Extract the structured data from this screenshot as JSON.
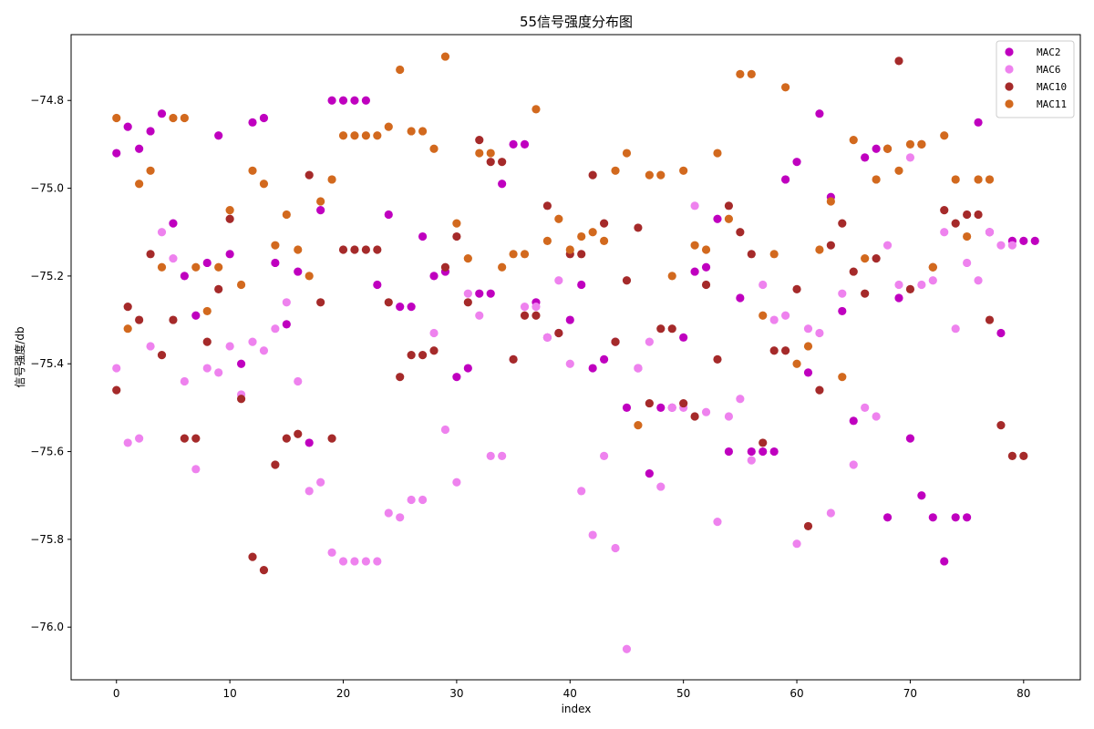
{
  "chart_data": {
    "type": "scatter",
    "title": "55信号强度分布图",
    "xlabel": "index",
    "ylabel": "信号强度/db",
    "xlim": [
      -4,
      85
    ],
    "ylim": [
      -76.12,
      -74.65
    ],
    "xticks": [
      0,
      10,
      20,
      30,
      40,
      50,
      60,
      70,
      80
    ],
    "yticks": [
      -76.0,
      -75.8,
      -75.6,
      -75.4,
      -75.2,
      -75.0,
      -74.8
    ],
    "ytick_labels": [
      "−76.0",
      "−75.8",
      "−75.6",
      "−75.4",
      "−75.2",
      "−75.0",
      "−74.8"
    ],
    "xtick_labels": [
      "0",
      "10",
      "20",
      "30",
      "40",
      "50",
      "60",
      "70",
      "80"
    ],
    "grid": false,
    "legend_position": "top-right",
    "series": [
      {
        "name": "MAC2",
        "color": "#bf00bf",
        "x": [
          0,
          1,
          2,
          3,
          4,
          5,
          6,
          7,
          8,
          9,
          10,
          11,
          12,
          13,
          14,
          15,
          16,
          17,
          18,
          19,
          20,
          21,
          22,
          23,
          24,
          25,
          26,
          27,
          28,
          29,
          30,
          31,
          32,
          33,
          34,
          35,
          36,
          37,
          38,
          39,
          40,
          41,
          42,
          43,
          44,
          45,
          46,
          47,
          48,
          49,
          50,
          51,
          52,
          53,
          54,
          55,
          56,
          57,
          58,
          59,
          60,
          61,
          62,
          63,
          64,
          65,
          66,
          67,
          68,
          69,
          70,
          71,
          72,
          73,
          74,
          75,
          76,
          77,
          78,
          79,
          80,
          81
        ],
        "y": [
          -74.92,
          -74.86,
          -74.91,
          -74.87,
          -74.83,
          -75.08,
          -75.2,
          -75.29,
          -75.17,
          -74.88,
          -75.15,
          -75.4,
          -74.85,
          -74.84,
          -75.17,
          -75.31,
          -75.19,
          -75.58,
          -75.05,
          -74.8,
          -74.8,
          -74.8,
          -74.8,
          -75.22,
          -75.06,
          -75.27,
          -75.27,
          -75.11,
          -75.2,
          -75.19,
          -75.43,
          -75.41,
          -75.24,
          -75.24,
          -74.99,
          -74.9,
          -74.9,
          -75.26,
          -75.34,
          -75.33,
          -75.3,
          -75.22,
          -75.41,
          -75.39,
          -75.35,
          -75.5,
          -75.41,
          -75.65,
          -75.5,
          -75.5,
          -75.34,
          -75.19,
          -75.18,
          -75.07,
          -75.6,
          -75.25,
          -75.6,
          -75.6,
          -75.6,
          -74.98,
          -74.94,
          -75.42,
          -74.83,
          -75.02,
          -75.28,
          -75.53,
          -74.93,
          -74.91,
          -75.75,
          -75.25,
          -75.57,
          -75.7,
          -75.75,
          -75.85,
          -75.75,
          -75.75,
          -74.85,
          -75.1,
          -75.33,
          -75.12,
          -75.12,
          -75.12
        ]
      },
      {
        "name": "MAC6",
        "color": "#ee82ee",
        "x": [
          0,
          1,
          2,
          3,
          4,
          5,
          6,
          7,
          8,
          9,
          10,
          11,
          12,
          13,
          14,
          15,
          16,
          17,
          18,
          19,
          20,
          21,
          22,
          23,
          24,
          25,
          26,
          27,
          28,
          29,
          30,
          31,
          32,
          33,
          34,
          35,
          36,
          37,
          38,
          39,
          40,
          41,
          42,
          43,
          44,
          45,
          46,
          47,
          48,
          49,
          50,
          51,
          52,
          53,
          54,
          55,
          56,
          57,
          58,
          59,
          60,
          61,
          62,
          63,
          64,
          65,
          66,
          67,
          68,
          69,
          70,
          71,
          72,
          73,
          74,
          75,
          76,
          77,
          78,
          79
        ],
        "y": [
          -75.41,
          -75.58,
          -75.57,
          -75.36,
          -75.1,
          -75.16,
          -75.44,
          -75.64,
          -75.41,
          -75.42,
          -75.36,
          -75.47,
          -75.35,
          -75.37,
          -75.32,
          -75.26,
          -75.44,
          -75.69,
          -75.67,
          -75.83,
          -75.85,
          -75.85,
          -75.85,
          -75.85,
          -75.74,
          -75.75,
          -75.71,
          -75.71,
          -75.33,
          -75.55,
          -75.67,
          -75.24,
          -75.29,
          -75.61,
          -75.61,
          -75.39,
          -75.27,
          -75.27,
          -75.34,
          -75.21,
          -75.4,
          -75.69,
          -75.79,
          -75.61,
          -75.82,
          -76.05,
          -75.41,
          -75.35,
          -75.68,
          -75.5,
          -75.5,
          -75.04,
          -75.51,
          -75.76,
          -75.52,
          -75.48,
          -75.62,
          -75.22,
          -75.3,
          -75.29,
          -75.81,
          -75.32,
          -75.33,
          -75.74,
          -75.24,
          -75.63,
          -75.5,
          -75.52,
          -75.13,
          -75.22,
          -74.93,
          -75.22,
          -75.21,
          -75.1,
          -75.32,
          -75.17,
          -75.21,
          -75.1,
          -75.13,
          -75.13
        ]
      },
      {
        "name": "MAC10",
        "color": "#a52a2a",
        "x": [
          0,
          1,
          2,
          3,
          4,
          5,
          6,
          7,
          8,
          9,
          10,
          11,
          12,
          13,
          14,
          15,
          16,
          17,
          18,
          19,
          20,
          21,
          22,
          23,
          24,
          25,
          26,
          27,
          28,
          29,
          30,
          31,
          32,
          33,
          34,
          35,
          36,
          37,
          38,
          39,
          40,
          41,
          42,
          43,
          44,
          45,
          46,
          47,
          48,
          49,
          50,
          51,
          52,
          53,
          54,
          55,
          56,
          57,
          58,
          59,
          60,
          61,
          62,
          63,
          64,
          65,
          66,
          67,
          68,
          69,
          70,
          71,
          72,
          73,
          74,
          75,
          76,
          77,
          78,
          79,
          80
        ],
        "y": [
          -75.46,
          -75.27,
          -75.3,
          -75.15,
          -75.38,
          -75.3,
          -75.57,
          -75.57,
          -75.35,
          -75.23,
          -75.07,
          -75.48,
          -75.84,
          -75.87,
          -75.63,
          -75.57,
          -75.56,
          -74.97,
          -75.26,
          -75.57,
          -75.14,
          -75.14,
          -75.14,
          -75.14,
          -75.26,
          -75.43,
          -75.38,
          -75.38,
          -75.37,
          -75.18,
          -75.11,
          -75.26,
          -74.89,
          -74.94,
          -74.94,
          -75.39,
          -75.29,
          -75.29,
          -75.04,
          -75.33,
          -75.15,
          -75.15,
          -74.97,
          -75.08,
          -75.35,
          -75.21,
          -75.09,
          -75.49,
          -75.32,
          -75.32,
          -75.49,
          -75.52,
          -75.22,
          -75.39,
          -75.04,
          -75.1,
          -75.15,
          -75.58,
          -75.37,
          -75.37,
          -75.23,
          -75.77,
          -75.46,
          -75.13,
          -75.08,
          -75.19,
          -75.24,
          -75.16,
          -74.91,
          -74.71,
          -75.23,
          -74.9,
          -75.18,
          -75.05,
          -75.08,
          -75.06,
          -75.06,
          -75.3,
          -75.54,
          -75.61,
          -75.61
        ]
      },
      {
        "name": "MAC11",
        "color": "#d2691e",
        "x": [
          0,
          1,
          2,
          3,
          4,
          5,
          6,
          7,
          8,
          9,
          10,
          11,
          12,
          13,
          14,
          15,
          16,
          17,
          18,
          19,
          20,
          21,
          22,
          23,
          24,
          25,
          26,
          27,
          28,
          29,
          30,
          31,
          32,
          33,
          34,
          35,
          36,
          37,
          38,
          39,
          40,
          41,
          42,
          43,
          44,
          45,
          46,
          47,
          48,
          49,
          50,
          51,
          52,
          53,
          54,
          55,
          56,
          57,
          58,
          59,
          60,
          61,
          62,
          63,
          64,
          65,
          66,
          67,
          68,
          69,
          70,
          71,
          72,
          73,
          74,
          75,
          76,
          77
        ],
        "y": [
          -74.84,
          -75.32,
          -74.99,
          -74.96,
          -75.18,
          -74.84,
          -74.84,
          -75.18,
          -75.28,
          -75.18,
          -75.05,
          -75.22,
          -74.96,
          -74.99,
          -75.13,
          -75.06,
          -75.14,
          -75.2,
          -75.03,
          -74.98,
          -74.88,
          -74.88,
          -74.88,
          -74.88,
          -74.86,
          -74.73,
          -74.87,
          -74.87,
          -74.91,
          -74.7,
          -75.08,
          -75.16,
          -74.92,
          -74.92,
          -75.18,
          -75.15,
          -75.15,
          -74.82,
          -75.12,
          -75.07,
          -75.14,
          -75.11,
          -75.1,
          -75.12,
          -74.96,
          -74.92,
          -75.54,
          -74.97,
          -74.97,
          -75.2,
          -74.96,
          -75.13,
          -75.14,
          -74.92,
          -75.07,
          -74.74,
          -74.74,
          -75.29,
          -75.15,
          -74.77,
          -75.4,
          -75.36,
          -75.14,
          -75.03,
          -75.43,
          -74.89,
          -75.16,
          -74.98,
          -74.91,
          -74.96,
          -74.9,
          -74.9,
          -75.18,
          -74.88,
          -74.98,
          -75.11,
          -74.98,
          -74.98
        ]
      }
    ]
  }
}
